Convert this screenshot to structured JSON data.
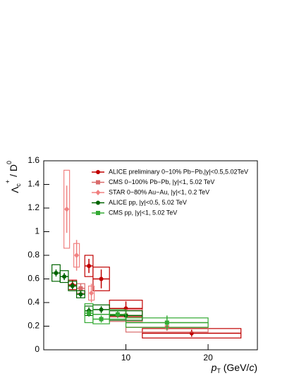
{
  "chart_data": {
    "type": "errorbar",
    "ylabel": [
      "Λ",
      "c",
      "+",
      " / D",
      "0"
    ],
    "xlabel": [
      "p",
      "T",
      " (GeV/",
      "c",
      ")"
    ],
    "xlim": [
      0,
      26
    ],
    "xticks": [
      10,
      20
    ],
    "ylim": [
      0,
      1.6
    ],
    "yticks": [
      0,
      0.2,
      0.4,
      0.6,
      0.8,
      1,
      1.2,
      1.4,
      1.6
    ],
    "legend": "top-right",
    "series": [
      {
        "name": "ALICE preliminary 0−10% Pb−Pb,|y|<0.5,5.02TeV",
        "color": "#c00000",
        "marker": "circle",
        "x": [
          3.5,
          5.5,
          7,
          10,
          18
        ],
        "values": [
          0.55,
          0.71,
          0.6,
          0.35,
          0.14
        ],
        "xerr": [
          0.5,
          0.5,
          1,
          2,
          6
        ],
        "yerr": [
          0.04,
          0.06,
          0.08,
          0.06,
          0.03
        ],
        "syst": [
          0.04,
          0.09,
          0.1,
          0.07,
          0.04
        ]
      },
      {
        "name": "CMS 0−100% Pb−Pb, |y|<1, 5.02 TeV",
        "color": "#d96b6b",
        "marker": "square",
        "x": [
          4.5,
          10,
          15
        ],
        "values": [
          0.52,
          0.29,
          0.19
        ],
        "xerr": [
          0.5,
          2,
          5
        ],
        "yerr": [
          0.04,
          0.05,
          0.03
        ],
        "syst": [
          0.04,
          0.05,
          0.04
        ]
      },
      {
        "name": "STAR 0−80% Au−Au, |y|<1, 0.2 TeV",
        "color": "#f08080",
        "marker": "diamond",
        "x": [
          2.8,
          4,
          5.8
        ],
        "values": [
          1.19,
          0.8,
          0.48
        ],
        "xerr": [
          0,
          0,
          0
        ],
        "yerr": [
          0.2,
          0.13,
          0.08
        ],
        "syst": [
          0.33,
          0.1,
          0.06
        ]
      },
      {
        "name": "ALICE pp, |y|<0.5, 5.02 TeV",
        "color": "#006400",
        "marker": "circle",
        "x": [
          1.5,
          2.5,
          3.5,
          4.5,
          5.5,
          7,
          10
        ],
        "values": [
          0.65,
          0.62,
          0.54,
          0.47,
          0.33,
          0.34,
          0.29
        ],
        "xerr": [
          0.5,
          0.5,
          0.5,
          0.5,
          0.5,
          1,
          2
        ],
        "yerr": [
          0.03,
          0.03,
          0.03,
          0.03,
          0.03,
          0.03,
          0.04
        ],
        "syst": [
          0.07,
          0.05,
          0.04,
          0.03,
          0.04,
          0.04,
          0.04
        ]
      },
      {
        "name": "CMS pp, |y|<1, 5.02 TeV",
        "color": "#33aa33",
        "marker": "square",
        "x": [
          5.5,
          7,
          9,
          15
        ],
        "values": [
          0.31,
          0.26,
          0.3,
          0.23
        ],
        "xerr": [
          0.5,
          1,
          1,
          5
        ],
        "yerr": [
          0.03,
          0.03,
          0.03,
          0.06
        ],
        "syst": [
          0.08,
          0.04,
          0.04,
          0.04
        ]
      }
    ]
  }
}
